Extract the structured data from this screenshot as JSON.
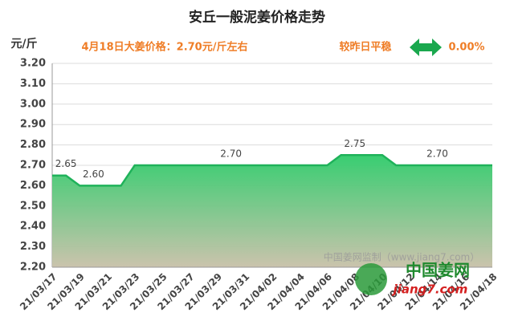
{
  "chart_data": {
    "type": "area",
    "title": "安丘一般泥姜价格走势",
    "y_label": "元/斤",
    "subtitle": "4月18日大姜价格：2.70元/斤左右",
    "change_text": "较昨日平稳",
    "change_value": "0.00%",
    "watermark": "中国姜网监制（www.jiang7.com）",
    "logo": {
      "name": "中国姜网",
      "url": "jiang7.com"
    },
    "categories": [
      "21/03/17",
      null,
      "21/03/19",
      null,
      "21/03/21",
      null,
      "21/03/23",
      null,
      "21/03/25",
      null,
      "21/03/27",
      null,
      "21/03/29",
      null,
      "21/03/31",
      null,
      "21/04/02",
      null,
      "21/04/04",
      null,
      "21/04/06",
      null,
      "21/04/08",
      null,
      "21/04/10",
      null,
      "21/04/12",
      null,
      "21/04/14",
      null,
      "21/04/16",
      null,
      "21/04/18"
    ],
    "values": [
      2.65,
      2.65,
      2.6,
      2.6,
      2.6,
      2.6,
      2.7,
      2.7,
      2.7,
      2.7,
      2.7,
      2.7,
      2.7,
      2.7,
      2.7,
      2.7,
      2.7,
      2.7,
      2.7,
      2.7,
      2.7,
      2.75,
      2.75,
      2.75,
      2.75,
      2.7,
      2.7,
      2.7,
      2.7,
      2.7,
      2.7,
      2.7,
      2.7
    ],
    "value_labels": [
      null,
      "2.65",
      null,
      "2.60",
      null,
      null,
      null,
      null,
      null,
      null,
      null,
      null,
      null,
      "2.70",
      null,
      null,
      null,
      null,
      null,
      null,
      null,
      null,
      "2.75",
      null,
      null,
      null,
      null,
      null,
      "2.70",
      null,
      null,
      null,
      null
    ],
    "color": "#1fb25a",
    "ylim": [
      2.2,
      3.2
    ],
    "yticks": [
      {
        "value": 2.2,
        "label": "2.20"
      },
      {
        "value": 2.3,
        "label": "2.30"
      },
      {
        "value": 2.4,
        "label": "2.40"
      },
      {
        "value": 2.5,
        "label": "2.50"
      },
      {
        "value": 2.6,
        "label": "2.60"
      },
      {
        "value": 2.7,
        "label": "2.70"
      },
      {
        "value": 2.8,
        "label": "2.80"
      },
      {
        "value": 2.9,
        "label": "2.90"
      },
      {
        "value": 3.0,
        "label": "3.00"
      },
      {
        "value": 3.1,
        "label": "3.10"
      },
      {
        "value": 3.2,
        "label": "3.20"
      }
    ],
    "grid": true
  }
}
